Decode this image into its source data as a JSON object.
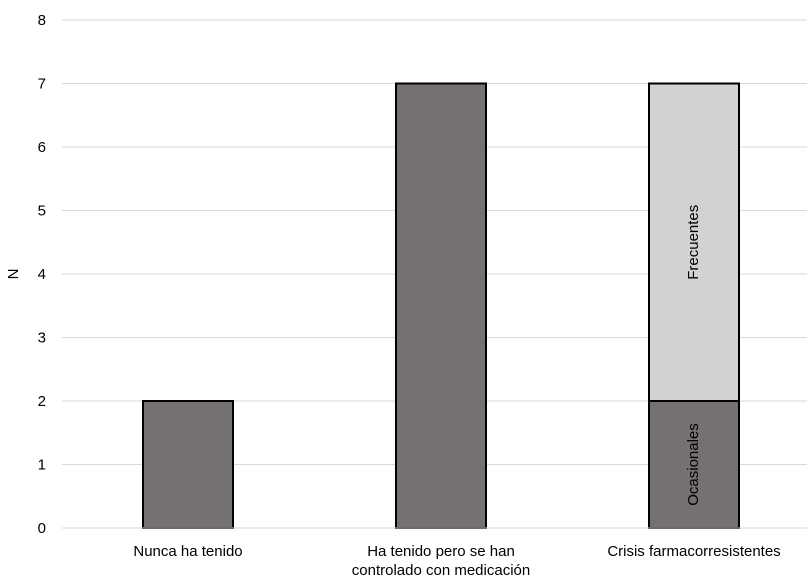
{
  "chart_data": {
    "type": "bar",
    "stacked": true,
    "categories": [
      [
        "Nunca ha tenido"
      ],
      [
        "Ha tenido pero se han",
        "controlado con medicación"
      ],
      [
        "Crisis farmacorresistentes"
      ]
    ],
    "series": [
      {
        "name": "Ocasionales",
        "values": [
          2,
          7,
          2
        ],
        "color": "#757170"
      },
      {
        "name": "Frecuentes",
        "values": [
          0,
          0,
          5
        ],
        "color": "#d3d2d2"
      }
    ],
    "segment_labels": [
      {
        "category": 2,
        "series": 0,
        "text": "Ocasionales"
      },
      {
        "category": 2,
        "series": 1,
        "text": "Frecuentes"
      }
    ],
    "ylabel": "N",
    "xlabel": "",
    "ylim": [
      0,
      8
    ],
    "yticks": [
      0,
      1,
      2,
      3,
      4,
      5,
      6,
      7,
      8
    ],
    "grid": true,
    "gridColor": "#d9d9d9",
    "legend": "none"
  }
}
